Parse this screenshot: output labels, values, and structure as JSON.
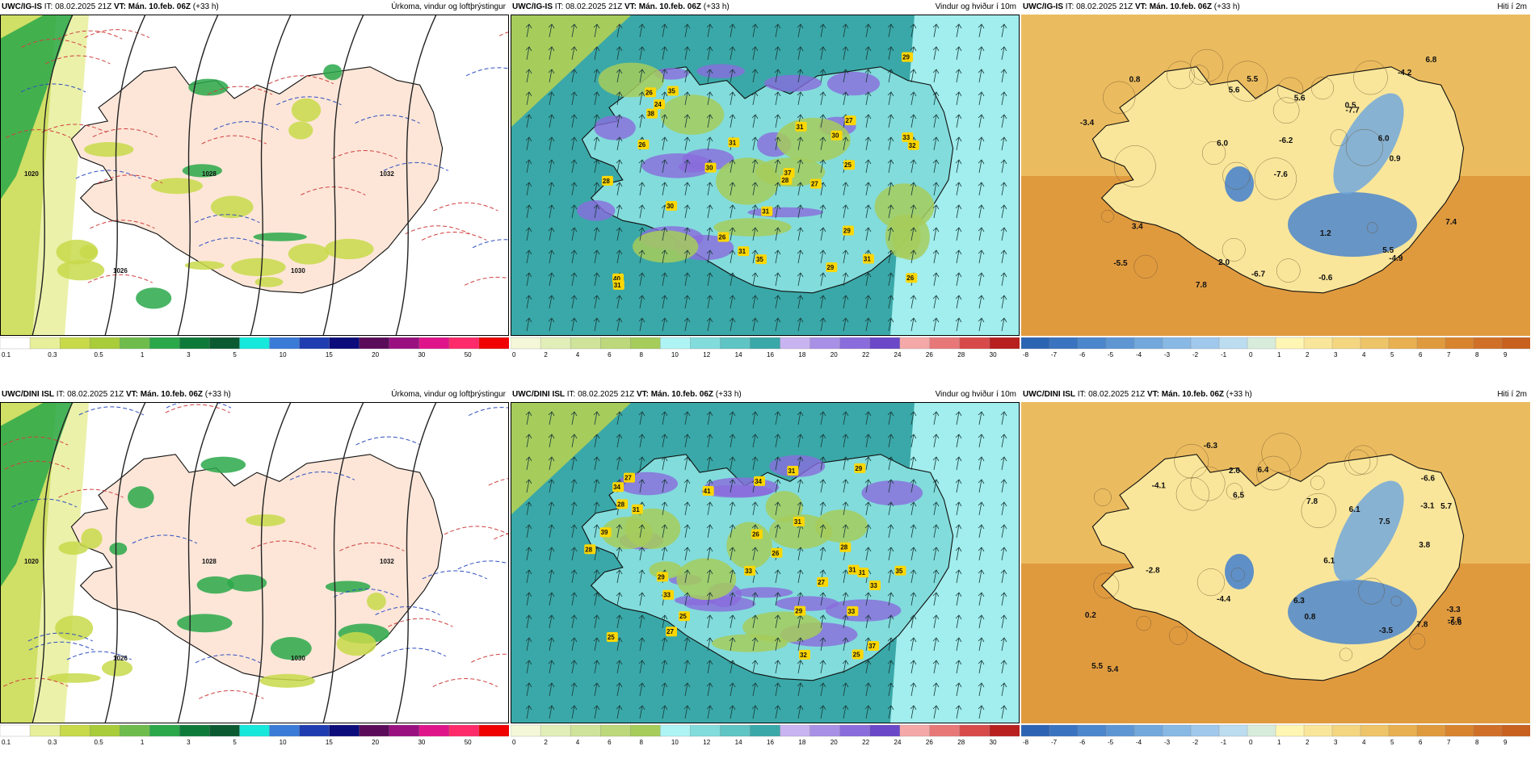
{
  "rows": [
    {
      "model_label": "UWC/IG-IS",
      "precip_title": "Úrkoma, vindur og loftþrýstingur",
      "wind_title": "Vindur og hviður í 10m",
      "temp_title": "Hiti í 2m",
      "gust_labels": [
        "26",
        "31",
        "29",
        "33",
        "26",
        "29",
        "30",
        "27",
        "30",
        "31",
        "35",
        "28",
        "31",
        "29",
        "38",
        "25",
        "35",
        "40",
        "37",
        "32",
        "31",
        "31",
        "26",
        "31",
        "24",
        "26",
        "30",
        "27",
        "28"
      ],
      "temp_labels": [
        "5.5",
        "5.6",
        "3.4",
        "6.0",
        "1.2",
        "7.4",
        "6.0",
        "2.0",
        "6.8",
        "5.5",
        "-5.5",
        "7.8",
        "-0.6",
        "0.8",
        "-6.7",
        "-7.7",
        "-4.9",
        "0.5",
        "-3.4",
        "-7.6",
        "5.6",
        "0.9",
        "-6.2",
        "-4.2"
      ],
      "pressure_labels": [
        "1020",
        "1026",
        "1028",
        "1030",
        "1032"
      ]
    },
    {
      "model_label": "UWC/DINI ISL",
      "precip_title": "Úrkoma, vindur og loftþrýstingur",
      "wind_title": "Vindur og hviður í 10m",
      "temp_title": "Hiti í 2m",
      "gust_labels": [
        "27",
        "25",
        "33",
        "25",
        "26",
        "31",
        "33",
        "35",
        "29",
        "33",
        "26",
        "31",
        "28",
        "31",
        "34",
        "34",
        "29",
        "39",
        "41",
        "37",
        "28",
        "32",
        "31",
        "25",
        "27",
        "27",
        "29",
        "33",
        "28",
        "31"
      ],
      "temp_labels": [
        "6.1",
        "6.5",
        "6.3",
        "5.7",
        "6.1",
        "5.5",
        "7.8",
        "7.5",
        "-4.4",
        "7.8",
        "-3.3",
        "-6.6",
        "-4.1",
        "0.8",
        "0.2",
        "-3.5",
        "-6.6",
        "-7.6",
        "5.4",
        "6.4",
        "-2.8",
        "-6.3",
        "2.6",
        "3.8",
        "-3.1"
      ],
      "pressure_labels": [
        "1020",
        "1026",
        "1028",
        "1030",
        "1032"
      ]
    }
  ],
  "header": {
    "it_prefix": "IT:",
    "it_value": "08.02.2025 21Z",
    "vt_prefix": "VT:",
    "vt_value": "Mán. 10.feb. 06Z",
    "lead": "(+33 h)"
  },
  "colorbars": {
    "precip": {
      "ticks": [
        "0.1",
        "0.3",
        "0.5",
        "1",
        "3",
        "5",
        "10",
        "15",
        "20",
        "30",
        "50"
      ],
      "colors": [
        "#ffffff",
        "#e8ef9a",
        "#c8d94a",
        "#a8cc3a",
        "#6ebd4c",
        "#2aa84a",
        "#0e7a3a",
        "#0b5a32",
        "#17e8dc",
        "#3a7bd8",
        "#1f3db0",
        "#0c0c7a",
        "#5a0c5a",
        "#9a1080",
        "#e0148a",
        "#ff2a6a",
        "#f00000"
      ]
    },
    "wind": {
      "ticks": [
        "0",
        "2",
        "4",
        "6",
        "8",
        "10",
        "12",
        "14",
        "16",
        "18",
        "20",
        "22",
        "24",
        "26",
        "28",
        "30"
      ],
      "colors": [
        "#f4f8d8",
        "#e2eeb8",
        "#cfe39a",
        "#bcd87a",
        "#a6cc5c",
        "#aef4f4",
        "#82dcdc",
        "#5fc4c4",
        "#3aa8a8",
        "#c8b4f0",
        "#a890e6",
        "#8a6cdc",
        "#6a48c8",
        "#f4a8a8",
        "#e87878",
        "#d84a4a",
        "#b82020"
      ]
    },
    "temp": {
      "ticks": [
        "-8",
        "-7",
        "-6",
        "-5",
        "-4",
        "-3",
        "-2",
        "-1",
        "0",
        "1",
        "2",
        "3",
        "4",
        "5",
        "6",
        "7",
        "8",
        "9"
      ],
      "colors": [
        "#2c64b4",
        "#3a74c0",
        "#4c86cc",
        "#5e96d4",
        "#72a8dc",
        "#88b8e4",
        "#a0c8ec",
        "#bcdcf0",
        "#d8ecdc",
        "#fff6b4",
        "#fae69a",
        "#f4d680",
        "#eec468",
        "#e8b050",
        "#e09a3e",
        "#d8842e",
        "#d07028",
        "#c86020"
      ]
    }
  }
}
